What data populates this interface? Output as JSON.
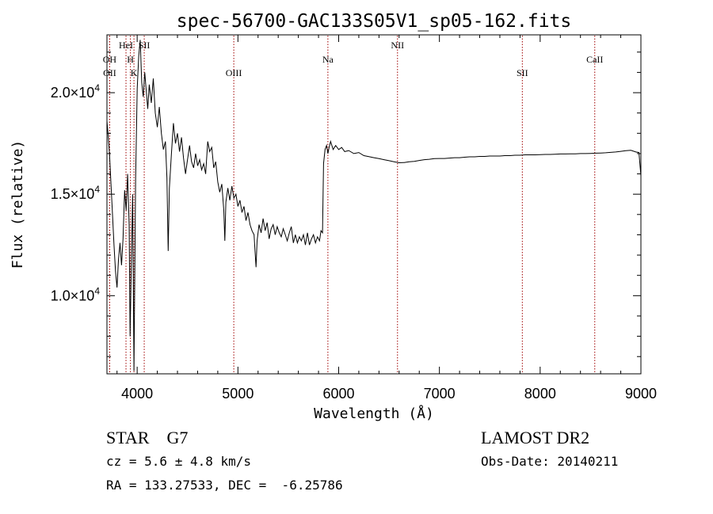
{
  "chart_data": {
    "type": "line",
    "title": "spec-56700-GAC133S05V1_sp05-162.fits",
    "xlabel": "Wavelength (Å)",
    "ylabel": "Flux (relative)",
    "xlim": [
      3700,
      9000
    ],
    "ylim": [
      6150,
      22850
    ],
    "grid": false,
    "legend": "none",
    "x_ticks": [
      {
        "value": 4000,
        "label": "4000"
      },
      {
        "value": 5000,
        "label": "5000"
      },
      {
        "value": 6000,
        "label": "6000"
      },
      {
        "value": 7000,
        "label": "7000"
      },
      {
        "value": 8000,
        "label": "8000"
      },
      {
        "value": 9000,
        "label": "9000"
      }
    ],
    "y_ticks": [
      {
        "value": 10000,
        "mantissa": "1.0×10",
        "exponent": "4"
      },
      {
        "value": 15000,
        "mantissa": "1.5×10",
        "exponent": "4"
      },
      {
        "value": 20000,
        "mantissa": "2.0×10",
        "exponent": "4"
      }
    ],
    "line_color": "#000000",
    "marker_color": "#a00000",
    "lines": [
      {
        "label": "OH",
        "x": 3727,
        "row": 0
      },
      {
        "label": "OII",
        "x": 3727,
        "row": 1
      },
      {
        "label": "HeI",
        "x": 3889,
        "row": -1
      },
      {
        "label": "H",
        "x": 3933,
        "row": 0
      },
      {
        "label": "K",
        "x": 3968,
        "row": 1
      },
      {
        "label": "SII",
        "x": 4070,
        "row": -1
      },
      {
        "label": "OIII",
        "x": 4959,
        "row": 1
      },
      {
        "label": "Na",
        "x": 5893,
        "row": 0
      },
      {
        "label": "NII",
        "x": 6584,
        "row": -1
      },
      {
        "label": "SII",
        "x": 7823,
        "row": 1
      },
      {
        "label": "CaII",
        "x": 8542,
        "row": 0
      }
    ],
    "series": [
      {
        "values_xy": [
          [
            3700,
            18600
          ],
          [
            3710,
            18000
          ],
          [
            3725,
            17000
          ],
          [
            3740,
            15500
          ],
          [
            3755,
            14000
          ],
          [
            3770,
            12500
          ],
          [
            3785,
            11200
          ],
          [
            3800,
            10400
          ],
          [
            3815,
            11800
          ],
          [
            3830,
            12600
          ],
          [
            3845,
            11500
          ],
          [
            3860,
            12800
          ],
          [
            3875,
            15200
          ],
          [
            3890,
            14200
          ],
          [
            3905,
            16000
          ],
          [
            3920,
            13500
          ],
          [
            3930,
            8000
          ],
          [
            3940,
            11000
          ],
          [
            3955,
            15000
          ],
          [
            3968,
            6300
          ],
          [
            3985,
            15800
          ],
          [
            4000,
            20200
          ],
          [
            4015,
            21800
          ],
          [
            4030,
            22600
          ],
          [
            4045,
            20500
          ],
          [
            4060,
            19800
          ],
          [
            4075,
            21000
          ],
          [
            4090,
            20100
          ],
          [
            4105,
            19200
          ],
          [
            4120,
            20400
          ],
          [
            4140,
            19500
          ],
          [
            4160,
            20700
          ],
          [
            4180,
            19000
          ],
          [
            4200,
            18300
          ],
          [
            4220,
            19300
          ],
          [
            4240,
            18000
          ],
          [
            4260,
            17200
          ],
          [
            4280,
            17600
          ],
          [
            4295,
            15800
          ],
          [
            4308,
            12200
          ],
          [
            4320,
            15300
          ],
          [
            4340,
            17000
          ],
          [
            4360,
            18500
          ],
          [
            4380,
            17500
          ],
          [
            4400,
            18000
          ],
          [
            4420,
            17100
          ],
          [
            4440,
            17800
          ],
          [
            4460,
            16800
          ],
          [
            4480,
            16000
          ],
          [
            4500,
            16700
          ],
          [
            4520,
            17400
          ],
          [
            4540,
            16600
          ],
          [
            4560,
            16300
          ],
          [
            4580,
            17000
          ],
          [
            4600,
            16400
          ],
          [
            4620,
            16700
          ],
          [
            4640,
            16200
          ],
          [
            4660,
            16500
          ],
          [
            4680,
            16000
          ],
          [
            4700,
            17600
          ],
          [
            4720,
            17100
          ],
          [
            4740,
            17300
          ],
          [
            4760,
            16300
          ],
          [
            4780,
            16600
          ],
          [
            4800,
            15600
          ],
          [
            4820,
            15100
          ],
          [
            4840,
            15500
          ],
          [
            4860,
            14200
          ],
          [
            4870,
            12700
          ],
          [
            4880,
            14600
          ],
          [
            4900,
            15300
          ],
          [
            4920,
            14700
          ],
          [
            4940,
            15400
          ],
          [
            4960,
            14800
          ],
          [
            4980,
            15000
          ],
          [
            5000,
            14400
          ],
          [
            5020,
            14700
          ],
          [
            5040,
            14100
          ],
          [
            5060,
            14400
          ],
          [
            5080,
            13700
          ],
          [
            5100,
            14100
          ],
          [
            5120,
            13500
          ],
          [
            5140,
            13200
          ],
          [
            5160,
            13000
          ],
          [
            5170,
            12200
          ],
          [
            5180,
            11400
          ],
          [
            5190,
            12700
          ],
          [
            5210,
            13500
          ],
          [
            5230,
            13100
          ],
          [
            5250,
            13800
          ],
          [
            5270,
            13200
          ],
          [
            5290,
            13600
          ],
          [
            5310,
            12800
          ],
          [
            5330,
            13300
          ],
          [
            5350,
            13500
          ],
          [
            5370,
            13000
          ],
          [
            5390,
            13400
          ],
          [
            5410,
            13100
          ],
          [
            5430,
            12900
          ],
          [
            5450,
            13300
          ],
          [
            5470,
            13000
          ],
          [
            5490,
            12700
          ],
          [
            5510,
            13100
          ],
          [
            5530,
            13400
          ],
          [
            5550,
            12600
          ],
          [
            5570,
            13000
          ],
          [
            5590,
            12600
          ],
          [
            5610,
            12900
          ],
          [
            5630,
            12700
          ],
          [
            5650,
            13000
          ],
          [
            5670,
            12500
          ],
          [
            5690,
            13100
          ],
          [
            5710,
            12500
          ],
          [
            5730,
            12800
          ],
          [
            5750,
            13000
          ],
          [
            5770,
            12600
          ],
          [
            5790,
            12900
          ],
          [
            5810,
            12700
          ],
          [
            5825,
            13200
          ],
          [
            5840,
            13100
          ],
          [
            5850,
            16500
          ],
          [
            5865,
            17200
          ],
          [
            5880,
            17400
          ],
          [
            5893,
            17000
          ],
          [
            5905,
            17300
          ],
          [
            5920,
            17600
          ],
          [
            5945,
            17200
          ],
          [
            5970,
            17400
          ],
          [
            6000,
            17200
          ],
          [
            6030,
            17300
          ],
          [
            6060,
            17100
          ],
          [
            6100,
            17150
          ],
          [
            6150,
            17000
          ],
          [
            6200,
            17050
          ],
          [
            6250,
            16900
          ],
          [
            6300,
            16850
          ],
          [
            6350,
            16800
          ],
          [
            6400,
            16750
          ],
          [
            6450,
            16700
          ],
          [
            6500,
            16650
          ],
          [
            6550,
            16600
          ],
          [
            6600,
            16550
          ],
          [
            6650,
            16560
          ],
          [
            6700,
            16600
          ],
          [
            6750,
            16620
          ],
          [
            6800,
            16660
          ],
          [
            6850,
            16700
          ],
          [
            6900,
            16720
          ],
          [
            6950,
            16750
          ],
          [
            7000,
            16760
          ],
          [
            7050,
            16760
          ],
          [
            7100,
            16780
          ],
          [
            7150,
            16800
          ],
          [
            7200,
            16800
          ],
          [
            7250,
            16820
          ],
          [
            7300,
            16840
          ],
          [
            7350,
            16840
          ],
          [
            7400,
            16860
          ],
          [
            7450,
            16860
          ],
          [
            7500,
            16880
          ],
          [
            7550,
            16880
          ],
          [
            7600,
            16880
          ],
          [
            7650,
            16900
          ],
          [
            7700,
            16900
          ],
          [
            7750,
            16920
          ],
          [
            7800,
            16920
          ],
          [
            7850,
            16940
          ],
          [
            7900,
            16940
          ],
          [
            7950,
            16940
          ],
          [
            8000,
            16950
          ],
          [
            8050,
            16960
          ],
          [
            8100,
            16960
          ],
          [
            8150,
            16970
          ],
          [
            8200,
            16980
          ],
          [
            8250,
            16980
          ],
          [
            8300,
            16990
          ],
          [
            8350,
            16990
          ],
          [
            8400,
            17000
          ],
          [
            8450,
            17000
          ],
          [
            8500,
            17010
          ],
          [
            8550,
            17020
          ],
          [
            8600,
            17030
          ],
          [
            8650,
            17040
          ],
          [
            8700,
            17060
          ],
          [
            8750,
            17080
          ],
          [
            8800,
            17110
          ],
          [
            8850,
            17140
          ],
          [
            8900,
            17160
          ],
          [
            8950,
            17080
          ],
          [
            8980,
            17050
          ],
          [
            9000,
            15900
          ]
        ]
      }
    ]
  },
  "info": {
    "class_line": "STAR    G7",
    "survey": "LAMOST DR2",
    "redshift": "cz = 5.6 ± 4.8 km/s",
    "obs_date": "Obs-Date: 20140211",
    "coords": "RA = 133.27533, DEC =  -6.25786"
  }
}
